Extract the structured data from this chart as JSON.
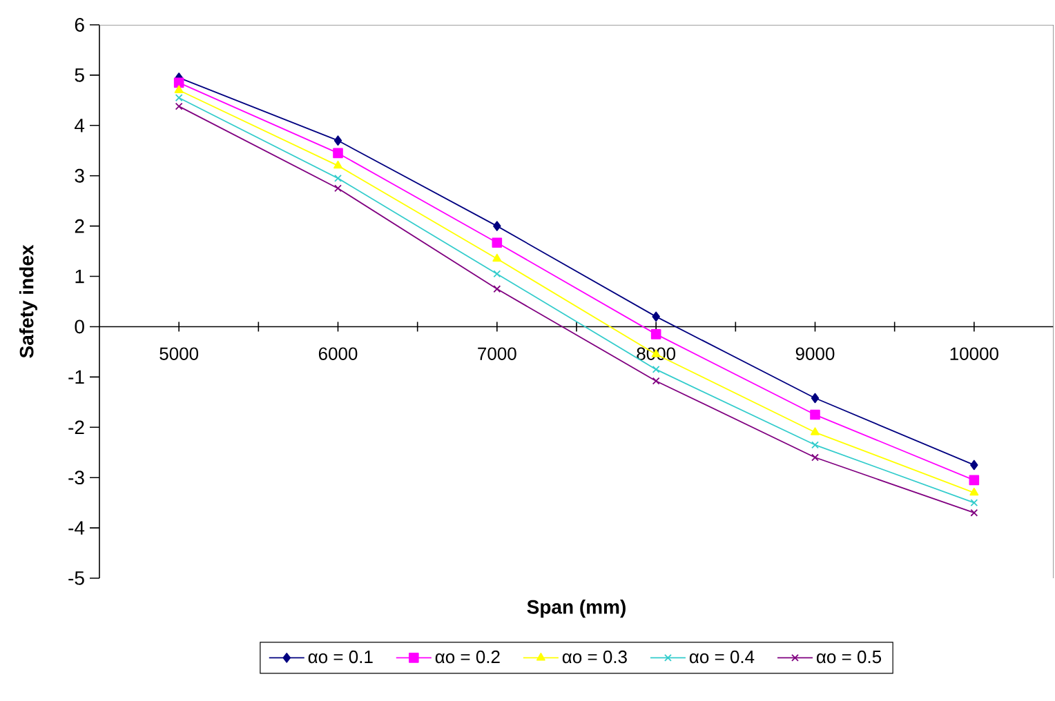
{
  "chart_data": {
    "type": "line",
    "xlabel": "Span (mm)",
    "ylabel": "Safety index",
    "categories": [
      "5000",
      "6000",
      "7000",
      "8000",
      "9000",
      "10000"
    ],
    "ylim": [
      -5,
      6
    ],
    "yticks": [
      -5,
      -4,
      -3,
      -2,
      -1,
      0,
      1,
      2,
      3,
      4,
      5,
      6
    ],
    "legend": "bottom",
    "grid": false,
    "series": [
      {
        "name": "αo = 0.1",
        "color": "#000080",
        "marker": "diamond",
        "values": [
          4.95,
          3.7,
          2.0,
          0.2,
          -1.42,
          -2.75
        ]
      },
      {
        "name": "αo = 0.2",
        "color": "#ff00ff",
        "marker": "square",
        "values": [
          4.85,
          3.45,
          1.67,
          -0.15,
          -1.75,
          -3.05
        ]
      },
      {
        "name": "αo = 0.3",
        "color": "#ffff00",
        "marker": "triangle",
        "values": [
          4.7,
          3.2,
          1.35,
          -0.55,
          -2.1,
          -3.3
        ]
      },
      {
        "name": "αo = 0.4",
        "color": "#33cccc",
        "marker": "cross",
        "values": [
          4.55,
          2.95,
          1.05,
          -0.85,
          -2.35,
          -3.5
        ]
      },
      {
        "name": "αo = 0.5",
        "color": "#800080",
        "marker": "cross",
        "values": [
          4.38,
          2.75,
          0.75,
          -1.08,
          -2.6,
          -3.7
        ]
      }
    ]
  }
}
